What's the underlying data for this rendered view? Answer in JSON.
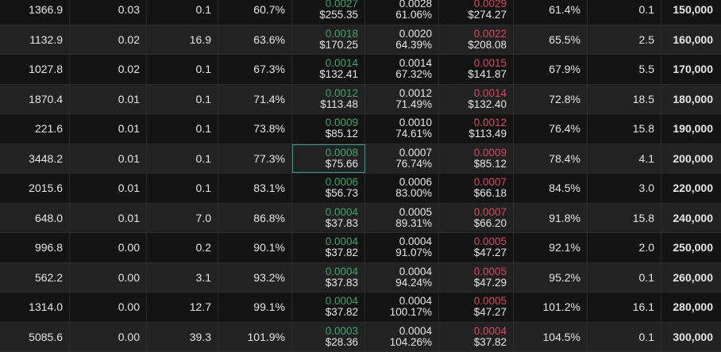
{
  "colors": {
    "bid": "#3da56c",
    "ask": "#d5485f",
    "selected_border": "#2fa391"
  },
  "rows": [
    {
      "c1": "1366.9",
      "c2": "0.03",
      "c3": "0.1",
      "c4": "60.7%",
      "bid": "0.0027",
      "bid_usd": "$255.35",
      "mark": "0.0028",
      "iv": "61.06%",
      "ask": "0.0029",
      "ask_usd": "$274.27",
      "c8": "61.4%",
      "c9": "0.1",
      "strike": "150,000"
    },
    {
      "c1": "1132.9",
      "c2": "0.02",
      "c3": "16.9",
      "c4": "63.6%",
      "bid": "0.0018",
      "bid_usd": "$170.25",
      "mark": "0.0020",
      "iv": "64.39%",
      "ask": "0.0022",
      "ask_usd": "$208.08",
      "c8": "65.5%",
      "c9": "2.5",
      "strike": "160,000"
    },
    {
      "c1": "1027.8",
      "c2": "0.02",
      "c3": "0.1",
      "c4": "67.3%",
      "bid": "0.0014",
      "bid_usd": "$132.41",
      "mark": "0.0014",
      "iv": "67.32%",
      "ask": "0.0015",
      "ask_usd": "$141.87",
      "c8": "67.9%",
      "c9": "5.5",
      "strike": "170,000"
    },
    {
      "c1": "1870.4",
      "c2": "0.01",
      "c3": "0.1",
      "c4": "71.4%",
      "bid": "0.0012",
      "bid_usd": "$113.48",
      "mark": "0.0012",
      "iv": "71.49%",
      "ask": "0.0014",
      "ask_usd": "$132.40",
      "c8": "72.8%",
      "c9": "18.5",
      "strike": "180,000"
    },
    {
      "c1": "221.6",
      "c2": "0.01",
      "c3": "0.1",
      "c4": "73.8%",
      "bid": "0.0009",
      "bid_usd": "$85.12",
      "mark": "0.0010",
      "iv": "74.61%",
      "ask": "0.0012",
      "ask_usd": "$113.49",
      "c8": "76.4%",
      "c9": "15.8",
      "strike": "190,000"
    },
    {
      "c1": "3448.2",
      "c2": "0.01",
      "c3": "0.1",
      "c4": "77.3%",
      "bid": "0.0008",
      "bid_usd": "$75.66",
      "mark": "0.0007",
      "iv": "76.74%",
      "ask": "0.0009",
      "ask_usd": "$85.12",
      "c8": "78.4%",
      "c9": "4.1",
      "strike": "200,000",
      "selected": true
    },
    {
      "c1": "2015.6",
      "c2": "0.01",
      "c3": "0.1",
      "c4": "83.1%",
      "bid": "0.0006",
      "bid_usd": "$56.73",
      "mark": "0.0006",
      "iv": "83.00%",
      "ask": "0.0007",
      "ask_usd": "$66.18",
      "c8": "84.5%",
      "c9": "3.0",
      "strike": "220,000"
    },
    {
      "c1": "648.0",
      "c2": "0.01",
      "c3": "7.0",
      "c4": "86.8%",
      "bid": "0.0004",
      "bid_usd": "$37.83",
      "mark": "0.0005",
      "iv": "89.31%",
      "ask": "0.0007",
      "ask_usd": "$66.20",
      "c8": "91.8%",
      "c9": "15.8",
      "strike": "240,000"
    },
    {
      "c1": "996.8",
      "c2": "0.00",
      "c3": "0.2",
      "c4": "90.1%",
      "bid": "0.0004",
      "bid_usd": "$37.82",
      "mark": "0.0004",
      "iv": "91.07%",
      "ask": "0.0005",
      "ask_usd": "$47.27",
      "c8": "92.1%",
      "c9": "2.0",
      "strike": "250,000"
    },
    {
      "c1": "562.2",
      "c2": "0.00",
      "c3": "3.1",
      "c4": "93.2%",
      "bid": "0.0004",
      "bid_usd": "$37.83",
      "mark": "0.0004",
      "iv": "94.24%",
      "ask": "0.0005",
      "ask_usd": "$47.29",
      "c8": "95.2%",
      "c9": "0.1",
      "strike": "260,000"
    },
    {
      "c1": "1314.0",
      "c2": "0.00",
      "c3": "12.7",
      "c4": "99.1%",
      "bid": "0.0004",
      "bid_usd": "$37.82",
      "mark": "0.0004",
      "iv": "100.17%",
      "ask": "0.0005",
      "ask_usd": "$47.27",
      "c8": "101.2%",
      "c9": "16.1",
      "strike": "280,000"
    },
    {
      "c1": "5085.6",
      "c2": "0.00",
      "c3": "39.3",
      "c4": "101.9%",
      "bid": "0.0003",
      "bid_usd": "$28.36",
      "mark": "0.0004",
      "iv": "104.26%",
      "ask": "0.0004",
      "ask_usd": "$37.82",
      "c8": "104.5%",
      "c9": "0.1",
      "strike": "300,000"
    }
  ]
}
